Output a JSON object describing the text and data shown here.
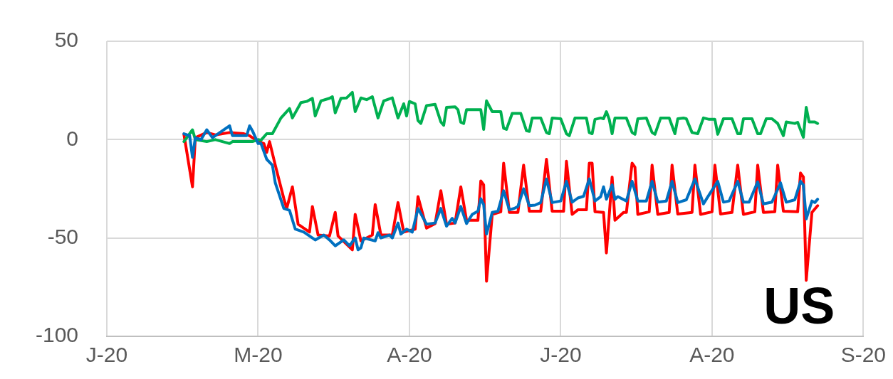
{
  "chart_data": {
    "type": "line",
    "xlim": [
      "2020-01-08",
      "2020-09-29"
    ],
    "xticks": [
      {
        "value": "2020-01-08",
        "label": "J-20"
      },
      {
        "value": "2020-03-01",
        "label": "M-20"
      },
      {
        "value": "2020-04-23",
        "label": "A-20"
      },
      {
        "value": "2020-06-15",
        "label": "J-20"
      },
      {
        "value": "2020-08-07",
        "label": "A-20"
      },
      {
        "value": "2020-09-29",
        "label": "S-20"
      }
    ],
    "ylim": [
      -100,
      50
    ],
    "yticks": [
      -100,
      -50,
      0,
      50
    ],
    "grid": true,
    "legend": false,
    "marker": "none",
    "annotations": [
      "US"
    ],
    "series": [
      {
        "color": "#ff0000",
        "x": [
          "2020-02-04",
          "2020-02-07",
          "2020-02-08",
          "2020-02-12",
          "2020-02-15",
          "2020-02-20",
          "2020-02-25",
          "2020-02-27",
          "2020-03-01",
          "2020-03-03",
          "2020-03-04",
          "2020-03-05",
          "2020-03-07",
          "2020-03-10",
          "2020-03-11",
          "2020-03-13",
          "2020-03-15",
          "2020-03-19",
          "2020-03-20",
          "2020-03-22",
          "2020-03-26",
          "2020-03-28",
          "2020-03-29",
          "2020-04-03",
          "2020-04-04",
          "2020-04-06",
          "2020-04-10",
          "2020-04-11",
          "2020-04-13",
          "2020-04-17",
          "2020-04-19",
          "2020-04-21",
          "2020-04-25",
          "2020-04-26",
          "2020-04-29",
          "2020-05-02",
          "2020-05-04",
          "2020-05-06",
          "2020-05-09",
          "2020-05-11",
          "2020-05-13",
          "2020-05-17",
          "2020-05-18",
          "2020-05-19",
          "2020-05-20",
          "2020-05-22",
          "2020-05-25",
          "2020-05-26",
          "2020-05-28",
          "2020-05-31",
          "2020-06-02",
          "2020-06-04",
          "2020-06-08",
          "2020-06-10",
          "2020-06-12",
          "2020-06-16",
          "2020-06-17",
          "2020-06-19",
          "2020-06-21",
          "2020-06-24",
          "2020-06-25",
          "2020-06-26",
          "2020-06-27",
          "2020-06-30",
          "2020-07-01",
          "2020-07-03",
          "2020-07-04",
          "2020-07-07",
          "2020-07-08",
          "2020-07-10",
          "2020-07-11",
          "2020-07-12",
          "2020-07-16",
          "2020-07-17",
          "2020-07-19",
          "2020-07-23",
          "2020-07-24",
          "2020-07-26",
          "2020-07-31",
          "2020-08-01",
          "2020-08-03",
          "2020-08-07",
          "2020-08-08",
          "2020-08-10",
          "2020-08-14",
          "2020-08-16",
          "2020-08-18",
          "2020-08-22",
          "2020-08-23",
          "2020-08-25",
          "2020-08-29",
          "2020-08-30",
          "2020-09-01",
          "2020-09-06",
          "2020-09-07",
          "2020-09-08",
          "2020-09-09",
          "2020-09-11",
          "2020-09-13"
        ],
        "values": [
          2.7,
          -24,
          1,
          3.6,
          2.4,
          3.6,
          3,
          2,
          -1,
          -2,
          -6.5,
          -1,
          -13,
          -30,
          -35,
          -24,
          -43,
          -47,
          -34,
          -48.5,
          -49,
          -37,
          -49,
          -56,
          -38,
          -51.5,
          -48.5,
          -33,
          -48.5,
          -48.5,
          -32,
          -47,
          -45.5,
          -29,
          -45,
          -42.7,
          -26,
          -43,
          -42.4,
          -24,
          -41,
          -41,
          -21,
          -23,
          -72,
          -38,
          -36.7,
          -12,
          -37,
          -37,
          -13,
          -36.4,
          -36.4,
          -10,
          -36.4,
          -36.4,
          -11,
          -38,
          -35.7,
          -35.7,
          -12,
          -12,
          -36.7,
          -37,
          -57.6,
          -19,
          -41,
          -37,
          -37,
          -12,
          -14,
          -38,
          -36.7,
          -13,
          -38,
          -37,
          -13,
          -37.8,
          -37,
          -13,
          -38,
          -36.7,
          -13,
          -37.8,
          -37,
          -13,
          -38,
          -36.7,
          -13,
          -37,
          -36.7,
          -13,
          -36.4,
          -36.7,
          -17,
          -19,
          -71.5,
          -37,
          -33.6
        ]
      },
      {
        "color": "#00b050",
        "x": [
          "2020-02-04",
          "2020-02-07",
          "2020-02-08",
          "2020-02-12",
          "2020-02-15",
          "2020-02-20",
          "2020-02-21",
          "2020-02-28",
          "2020-03-01",
          "2020-03-02",
          "2020-03-04",
          "2020-03-06",
          "2020-03-09",
          "2020-03-12",
          "2020-03-13",
          "2020-03-16",
          "2020-03-18",
          "2020-03-20",
          "2020-03-21",
          "2020-03-23",
          "2020-03-26",
          "2020-03-27",
          "2020-03-28",
          "2020-03-30",
          "2020-04-01",
          "2020-04-03",
          "2020-04-04",
          "2020-04-06",
          "2020-04-08",
          "2020-04-10",
          "2020-04-12",
          "2020-04-14",
          "2020-04-17",
          "2020-04-19",
          "2020-04-21",
          "2020-04-22",
          "2020-04-23",
          "2020-04-25",
          "2020-04-26",
          "2020-04-27",
          "2020-04-29",
          "2020-05-02",
          "2020-05-04",
          "2020-05-05",
          "2020-05-06",
          "2020-05-09",
          "2020-05-10",
          "2020-05-11",
          "2020-05-12",
          "2020-05-13",
          "2020-05-18",
          "2020-05-19",
          "2020-05-20",
          "2020-05-22",
          "2020-05-25",
          "2020-05-26",
          "2020-05-27",
          "2020-05-29",
          "2020-06-01",
          "2020-06-03",
          "2020-06-04",
          "2020-06-05",
          "2020-06-08",
          "2020-06-10",
          "2020-06-11",
          "2020-06-12",
          "2020-06-15",
          "2020-06-17",
          "2020-06-18",
          "2020-06-20",
          "2020-06-24",
          "2020-06-25",
          "2020-06-26",
          "2020-06-27",
          "2020-06-29",
          "2020-06-30",
          "2020-07-01",
          "2020-07-02",
          "2020-07-03",
          "2020-07-04",
          "2020-07-08",
          "2020-07-10",
          "2020-07-11",
          "2020-07-12",
          "2020-07-15",
          "2020-07-17",
          "2020-07-18",
          "2020-07-20",
          "2020-07-23",
          "2020-07-25",
          "2020-07-26",
          "2020-07-28",
          "2020-07-29",
          "2020-07-31",
          "2020-08-02",
          "2020-08-04",
          "2020-08-06",
          "2020-08-08",
          "2020-08-09",
          "2020-08-11",
          "2020-08-14",
          "2020-08-16",
          "2020-08-17",
          "2020-08-18",
          "2020-08-21",
          "2020-08-23",
          "2020-08-24",
          "2020-08-26",
          "2020-08-28",
          "2020-08-30",
          "2020-09-01",
          "2020-09-02",
          "2020-09-05",
          "2020-09-06",
          "2020-09-08",
          "2020-09-09",
          "2020-09-10",
          "2020-09-12",
          "2020-09-13"
        ],
        "values": [
          -1,
          5,
          0,
          -1,
          0,
          -2,
          -1,
          -1,
          0,
          -0.3,
          3,
          3,
          11,
          15.8,
          11,
          18.8,
          19.4,
          21,
          12,
          19.7,
          21,
          21.8,
          13.6,
          21,
          21.2,
          24,
          14.2,
          21.2,
          20.3,
          21.8,
          11,
          19.7,
          21.2,
          11,
          18.2,
          12,
          19.4,
          18.2,
          9.7,
          8.2,
          17.3,
          17.9,
          9,
          7.3,
          16.4,
          16.7,
          15.2,
          8.8,
          8.2,
          15.2,
          15.2,
          5.2,
          19.7,
          14.2,
          14.2,
          5.8,
          5.2,
          13.3,
          13.3,
          4.5,
          4.2,
          11,
          11,
          3.6,
          3,
          11,
          10.6,
          3,
          2,
          11,
          11,
          3.6,
          3,
          10.3,
          11,
          10.6,
          14.2,
          10.3,
          3,
          11,
          11,
          3.6,
          2.7,
          10.6,
          11,
          3.6,
          2.7,
          11,
          11,
          3,
          10.6,
          11,
          10.6,
          3.6,
          3,
          11,
          10.3,
          10.3,
          2.7,
          10.6,
          10.6,
          3,
          3,
          10.6,
          10.6,
          3,
          3,
          10.6,
          10.6,
          8.2,
          2,
          9,
          8.2,
          8.8,
          1.2,
          16.4,
          9,
          9,
          8.2
        ]
      },
      {
        "color": "#0070c0",
        "x": [
          "2020-02-04",
          "2020-02-06",
          "2020-02-07",
          "2020-02-08",
          "2020-02-10",
          "2020-02-12",
          "2020-02-14",
          "2020-02-20",
          "2020-02-21",
          "2020-02-26",
          "2020-02-27",
          "2020-02-28",
          "2020-03-01",
          "2020-03-02",
          "2020-03-04",
          "2020-03-06",
          "2020-03-07",
          "2020-03-10",
          "2020-03-12",
          "2020-03-14",
          "2020-03-17",
          "2020-03-21",
          "2020-03-24",
          "2020-03-26",
          "2020-03-28",
          "2020-03-31",
          "2020-04-02",
          "2020-04-04",
          "2020-04-05",
          "2020-04-06",
          "2020-04-07",
          "2020-04-11",
          "2020-04-12",
          "2020-04-13",
          "2020-04-16",
          "2020-04-17",
          "2020-04-19",
          "2020-04-20",
          "2020-04-22",
          "2020-04-24",
          "2020-04-26",
          "2020-04-29",
          "2020-05-02",
          "2020-05-04",
          "2020-05-06",
          "2020-05-08",
          "2020-05-09",
          "2020-05-11",
          "2020-05-13",
          "2020-05-15",
          "2020-05-17",
          "2020-05-18",
          "2020-05-19",
          "2020-05-20",
          "2020-05-22",
          "2020-05-24",
          "2020-05-26",
          "2020-05-28",
          "2020-05-30",
          "2020-05-31",
          "2020-06-02",
          "2020-06-04",
          "2020-06-06",
          "2020-06-08",
          "2020-06-10",
          "2020-06-12",
          "2020-06-15",
          "2020-06-17",
          "2020-06-19",
          "2020-06-21",
          "2020-06-23",
          "2020-06-25",
          "2020-06-27",
          "2020-06-29",
          "2020-06-30",
          "2020-07-01",
          "2020-07-03",
          "2020-07-04",
          "2020-07-05",
          "2020-07-08",
          "2020-07-10",
          "2020-07-12",
          "2020-07-15",
          "2020-07-17",
          "2020-07-19",
          "2020-07-22",
          "2020-07-24",
          "2020-07-26",
          "2020-07-29",
          "2020-08-01",
          "2020-08-04",
          "2020-08-05",
          "2020-08-09",
          "2020-08-11",
          "2020-08-13",
          "2020-08-16",
          "2020-08-18",
          "2020-08-20",
          "2020-08-23",
          "2020-08-25",
          "2020-08-28",
          "2020-08-31",
          "2020-09-02",
          "2020-09-05",
          "2020-09-07",
          "2020-09-08",
          "2020-09-09",
          "2020-09-11",
          "2020-09-12",
          "2020-09-13"
        ],
        "values": [
          3,
          2,
          -9,
          1,
          0,
          5,
          1,
          7,
          2,
          2,
          7,
          4.5,
          -2,
          -2,
          -10,
          -13,
          -22,
          -35,
          -36,
          -45.5,
          -47,
          -51,
          -48.5,
          -51,
          -54,
          -51,
          -54,
          -50,
          -56,
          -55,
          -50,
          -51.5,
          -47.3,
          -50,
          -48.5,
          -50,
          -42.4,
          -48,
          -45.5,
          -47,
          -35,
          -43,
          -42.4,
          -35,
          -44,
          -40,
          -42.4,
          -34,
          -42.7,
          -38,
          -36.4,
          -30,
          -33,
          -48,
          -37,
          -36.4,
          -26,
          -35.7,
          -34.8,
          -34,
          -25,
          -33.6,
          -33.3,
          -32,
          -20,
          -32,
          -31.2,
          -21.2,
          -31.8,
          -29.7,
          -28.8,
          -20,
          -31.2,
          -29,
          -24,
          -30.3,
          -23,
          -30.3,
          -29,
          -31.2,
          -21.2,
          -31.2,
          -31.2,
          -21.2,
          -31.8,
          -31.2,
          -21.2,
          -32,
          -30.6,
          -20,
          -32.7,
          -30.3,
          -21.2,
          -31.8,
          -31.2,
          -21.2,
          -31.8,
          -31.8,
          -21.5,
          -32.7,
          -31.8,
          -22,
          -31.8,
          -30.6,
          -21.2,
          -23,
          -40.3,
          -31.2,
          -32,
          -30.3
        ]
      }
    ]
  }
}
